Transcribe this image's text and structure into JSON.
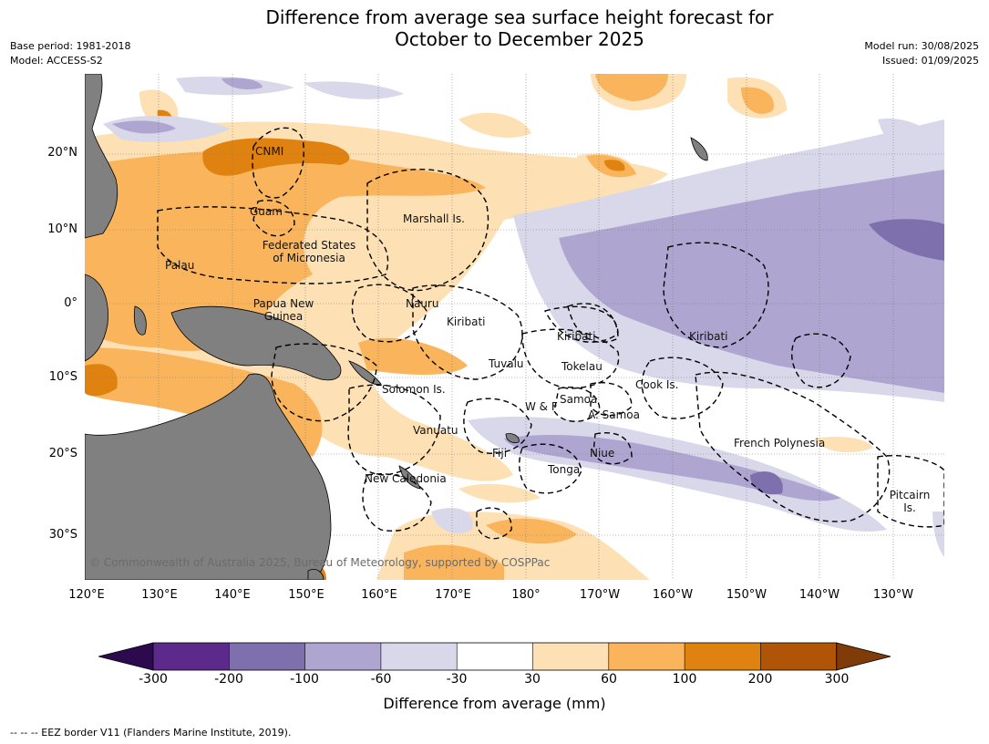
{
  "title_line1": "Difference from average sea surface height forecast for",
  "title_line2": "October to December 2025",
  "base_period": "Base period: 1981-2018",
  "model": "Model: ACCESS-S2",
  "model_run": "Model run: 30/08/2025",
  "issued": "Issued: 01/09/2025",
  "copyright": "© Commonwealth of Australia 2025, Bureau of Meteorology, supported by COSPPac",
  "footnote": "--  --  -- EEZ border V11 (Flanders Marine Institute, 2019).",
  "lat_labels": [
    "20°N",
    "10°N",
    "0°",
    "10°S",
    "20°S",
    "30°S"
  ],
  "lon_labels": [
    "120°E",
    "130°E",
    "140°E",
    "150°E",
    "160°E",
    "170°E",
    "180°",
    "170°W",
    "160°W",
    "150°W",
    "140°W",
    "130°W"
  ],
  "places": {
    "cnmi": "CNMI",
    "guam": "Guam",
    "marshall": "Marshall Is.",
    "fsm_1": "Federated States",
    "fsm_2": "of Micronesia",
    "palau": "Palau",
    "png_1": "Papua New",
    "png_2": "Guinea",
    "nauru": "Nauru",
    "kiribati_w": "Kiribati",
    "kiribati_c": "Kiribati",
    "kiribati_e": "Kiribati",
    "tuvalu": "Tuvalu",
    "tokelau": "Tokelau",
    "cook": "Cook Is.",
    "solomon": "Solomon Is.",
    "wf": "W & F",
    "samoa": "Samoa",
    "asamoa": "A. Samoa",
    "vanuatu": "Vanuatu",
    "fiji": "Fiji",
    "niue": "Niue",
    "french_polynesia": "French Polynesia",
    "tonga": "Tonga",
    "new_caledonia": "New Caledonia",
    "pitcairn_1": "Pitcairn",
    "pitcairn_2": "Is."
  },
  "legend": {
    "title": "Difference from average (mm)",
    "tick_labels": [
      "-300",
      "-200",
      "-100",
      "-60",
      "-30",
      "30",
      "60",
      "100",
      "200",
      "300"
    ],
    "colors": {
      "below_-300": "#2d0a4e",
      "-300_-200": "#5b2a8a",
      "-200_-100": "#7e6fad",
      "-100_-60": "#aea6d0",
      "-60_-30": "#d8d8ea",
      "-30_30": "#ffffff",
      "30_60": "#fde0b3",
      "60_100": "#f9b45c",
      "100_200": "#e0820f",
      "200_300": "#b05508",
      "above_300": "#7f3b08"
    }
  },
  "land_color": "#808080"
}
